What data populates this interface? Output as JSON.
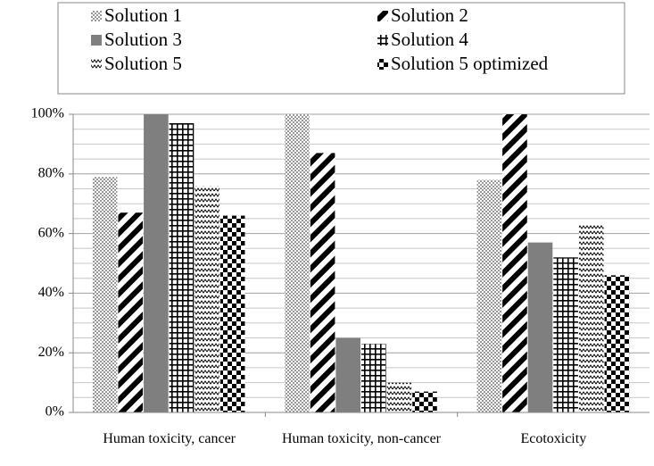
{
  "chart_data": {
    "type": "bar",
    "categories": [
      "Human toxicity, cancer",
      "Human toxicity, non-cancer",
      "Ecotoxicity"
    ],
    "series": [
      {
        "name": "Solution 1",
        "color": "#9a9a9a",
        "values": [
          79,
          100,
          78
        ]
      },
      {
        "name": "Solution 2",
        "color": "#000000",
        "values": [
          67,
          87,
          100
        ]
      },
      {
        "name": "Solution 3",
        "color": "#7f7f7f",
        "values": [
          100,
          25,
          57
        ]
      },
      {
        "name": "Solution 4",
        "color": "#000000",
        "values": [
          97,
          23,
          52
        ]
      },
      {
        "name": "Solution 5",
        "color": "#000000",
        "values": [
          76,
          10,
          63
        ]
      },
      {
        "name": "Solution 5 optimized",
        "color": "#000000",
        "values": [
          66,
          7,
          46
        ]
      }
    ],
    "ylim": [
      0,
      100
    ],
    "yticks": [
      {
        "value": 0,
        "label": "0%"
      },
      {
        "value": 20,
        "label": "20%"
      },
      {
        "value": 40,
        "label": "40%"
      },
      {
        "value": 60,
        "label": "60%"
      },
      {
        "value": 80,
        "label": "80%"
      },
      {
        "value": 100,
        "label": "100%"
      }
    ],
    "minor_yticks": [
      5,
      10,
      15,
      25,
      30,
      35,
      45,
      50,
      55,
      65,
      70,
      75,
      85,
      90,
      95
    ],
    "grid": true,
    "legend": "top"
  }
}
